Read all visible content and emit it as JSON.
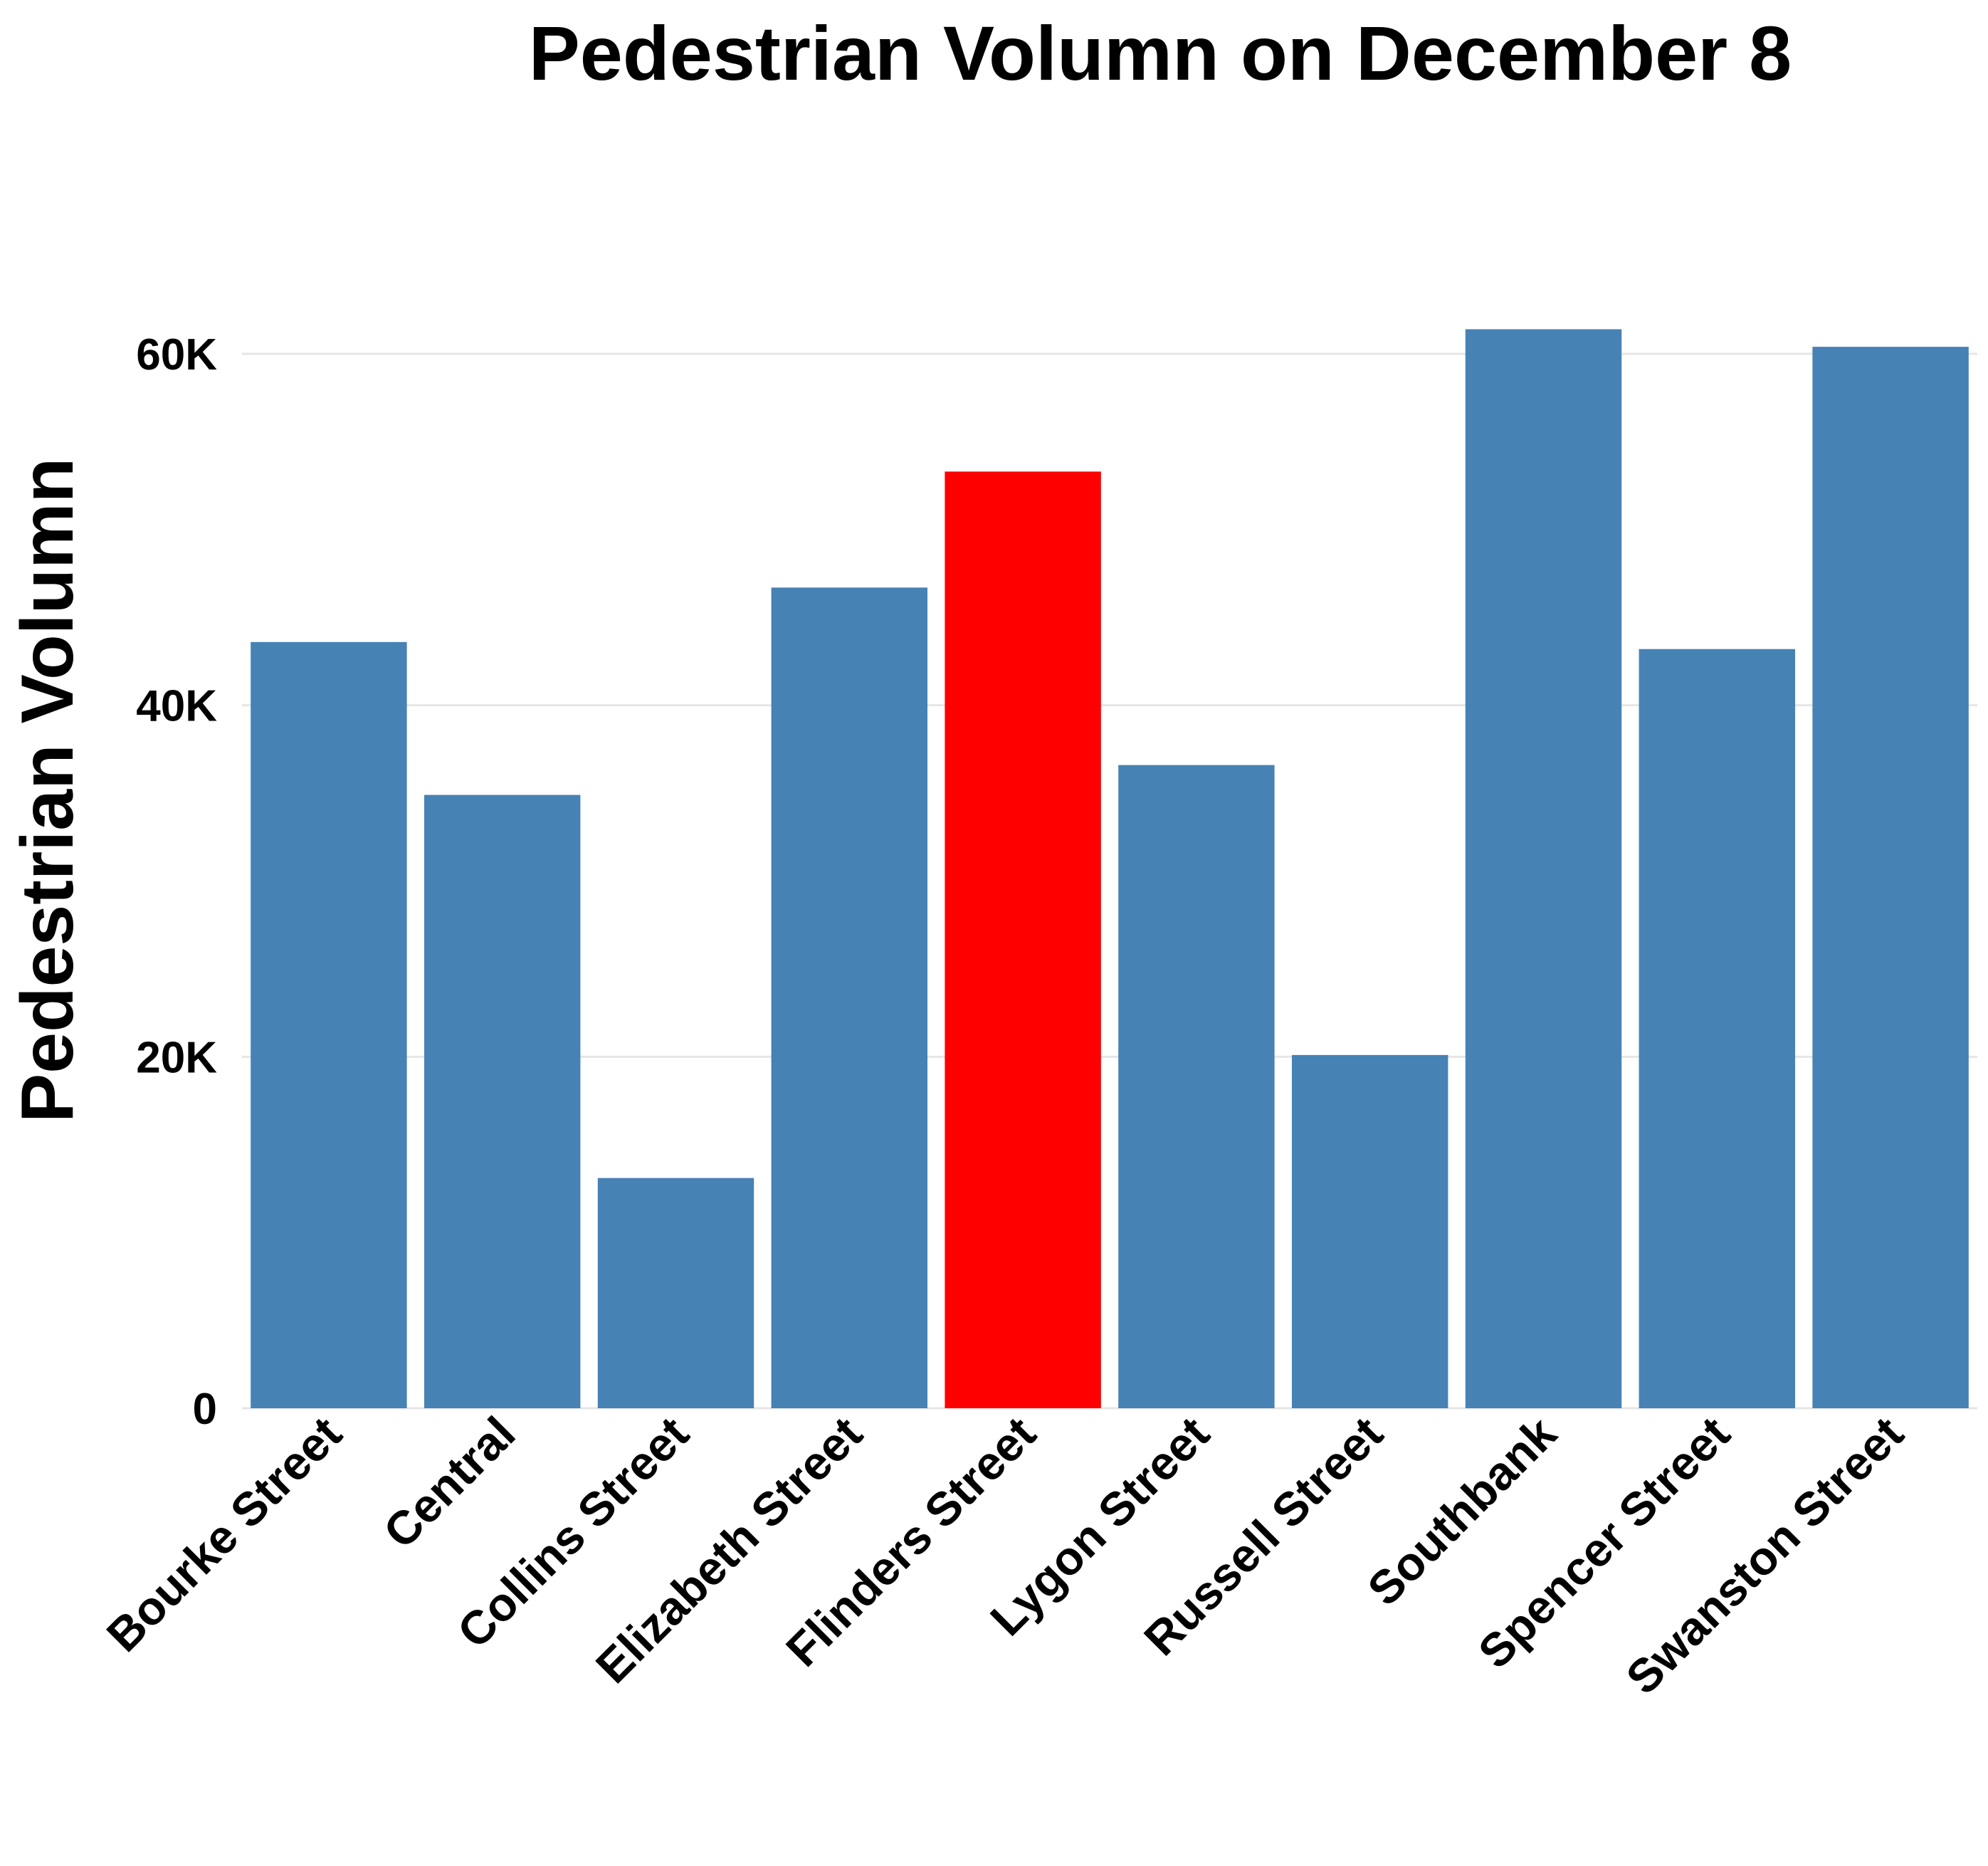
{
  "chart_data": {
    "type": "bar",
    "title": "Pedestrian Volumn on December 8",
    "xlabel": "",
    "ylabel": "Pedestrian Volumn",
    "categories": [
      "Bourke Street",
      "Central",
      "Collins Street",
      "Elizabeth Street",
      "Flinders Street",
      "Lygon Street",
      "Russell Street",
      "Southbank",
      "Spencer Street",
      "Swanston Street"
    ],
    "values": [
      43600,
      34900,
      13100,
      46700,
      53300,
      36600,
      20100,
      61400,
      43200,
      60400
    ],
    "highlight": "Flinders Street",
    "colors": {
      "default": "#4682b4",
      "highlight": "#ff0000"
    },
    "ylim": [
      0,
      60000
    ],
    "yticks": [
      0,
      20000,
      40000,
      60000
    ],
    "ytick_labels": [
      "0",
      "20K",
      "40K",
      "60K"
    ],
    "grid": true,
    "legend": "none"
  }
}
